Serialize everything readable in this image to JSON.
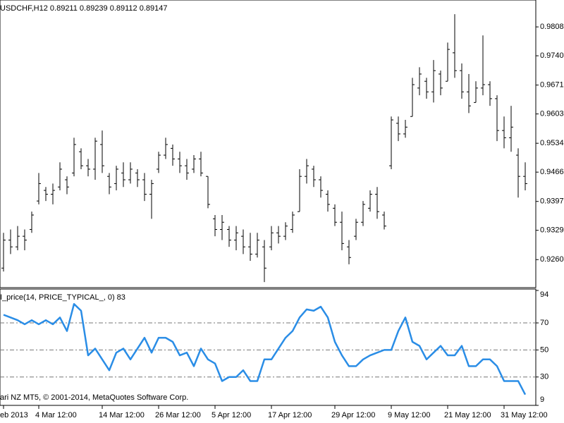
{
  "chart_data": [
    {
      "type": "ohlc",
      "title": "USDCHF,H12  0.89211 0.89239 0.89112 0.89147",
      "color": "#000000",
      "open": [
        0.924,
        0.9306,
        0.929,
        0.9315,
        0.9331,
        0.9398,
        0.9423,
        0.9414,
        0.9431,
        0.9448,
        0.9464,
        0.9514,
        0.9481,
        0.9473,
        0.9531,
        0.9456,
        0.9439,
        0.9464,
        0.9448,
        0.9464,
        0.9448,
        0.9414,
        0.9473,
        0.9506,
        0.9522,
        0.9497,
        0.9481,
        0.9473,
        0.9497,
        0.9456,
        0.9356,
        0.9331,
        0.9331,
        0.9306,
        0.9315,
        0.929,
        0.9273,
        0.929,
        0.929,
        0.9323,
        0.9315,
        0.9331,
        0.9373,
        0.9456,
        0.9473,
        0.9448,
        0.9414,
        0.9381,
        0.9348,
        0.929,
        0.9315,
        0.9348,
        0.9381,
        0.9414,
        0.9365,
        0.9481,
        0.9581,
        0.9556,
        0.9597,
        0.9664,
        0.968,
        0.9655,
        0.9697,
        0.968,
        0.9747,
        0.9705,
        0.9655,
        0.963,
        0.9664,
        0.9672,
        0.9639,
        0.9564,
        0.9547,
        0.9506,
        0.9456
      ],
      "high": [
        0.9323,
        0.9331,
        0.9339,
        0.9331,
        0.9373,
        0.9464,
        0.9431,
        0.9439,
        0.9489,
        0.9456,
        0.9547,
        0.9522,
        0.9497,
        0.9547,
        0.9564,
        0.9464,
        0.9481,
        0.9489,
        0.9489,
        0.9473,
        0.9464,
        0.9448,
        0.9514,
        0.9547,
        0.9531,
        0.9514,
        0.9497,
        0.9506,
        0.9514,
        0.9456,
        0.9365,
        0.9365,
        0.9339,
        0.9339,
        0.9331,
        0.9323,
        0.9323,
        0.9306,
        0.9339,
        0.9339,
        0.9348,
        0.9373,
        0.9473,
        0.9497,
        0.9481,
        0.9456,
        0.9423,
        0.939,
        0.9373,
        0.9306,
        0.9356,
        0.9398,
        0.9423,
        0.9431,
        0.9373,
        0.9597,
        0.9597,
        0.9589,
        0.9688,
        0.9713,
        0.9688,
        0.973,
        0.9705,
        0.9771,
        0.9838,
        0.9722,
        0.9697,
        0.968,
        0.9788,
        0.968,
        0.9647,
        0.9597,
        0.9622,
        0.9522,
        0.9489
      ],
      "low": [
        0.9232,
        0.9273,
        0.9282,
        0.9282,
        0.9323,
        0.939,
        0.9398,
        0.939,
        0.9423,
        0.9414,
        0.9456,
        0.9473,
        0.9456,
        0.9448,
        0.9464,
        0.9414,
        0.9423,
        0.9431,
        0.9439,
        0.9431,
        0.9398,
        0.9356,
        0.9464,
        0.9497,
        0.9481,
        0.9464,
        0.9448,
        0.9464,
        0.9456,
        0.9381,
        0.9315,
        0.9306,
        0.929,
        0.9282,
        0.9273,
        0.9257,
        0.9265,
        0.9207,
        0.9282,
        0.9298,
        0.9306,
        0.9323,
        0.9373,
        0.9439,
        0.9431,
        0.9406,
        0.9373,
        0.9339,
        0.9282,
        0.9249,
        0.9306,
        0.9339,
        0.9373,
        0.9356,
        0.9331,
        0.9473,
        0.9539,
        0.9547,
        0.9597,
        0.9647,
        0.9639,
        0.963,
        0.9647,
        0.968,
        0.9688,
        0.9639,
        0.9605,
        0.963,
        0.9647,
        0.9622,
        0.9539,
        0.9522,
        0.9514,
        0.9406,
        0.9423
      ],
      "close": [
        0.9306,
        0.929,
        0.9315,
        0.9306,
        0.9365,
        0.9439,
        0.9414,
        0.9423,
        0.9473,
        0.9431,
        0.9531,
        0.9481,
        0.9473,
        0.9539,
        0.9481,
        0.9431,
        0.9473,
        0.9448,
        0.9473,
        0.9448,
        0.9414,
        0.9439,
        0.9506,
        0.9531,
        0.9497,
        0.9481,
        0.9464,
        0.9497,
        0.9464,
        0.939,
        0.9331,
        0.9348,
        0.9306,
        0.9323,
        0.929,
        0.9273,
        0.9306,
        0.924,
        0.9323,
        0.9315,
        0.9339,
        0.9365,
        0.9456,
        0.9481,
        0.9448,
        0.9423,
        0.939,
        0.9348,
        0.9298,
        0.9265,
        0.9348,
        0.939,
        0.9414,
        0.9373,
        0.9339,
        0.9589,
        0.9556,
        0.9572,
        0.9672,
        0.9697,
        0.9655,
        0.9705,
        0.9664,
        0.9755,
        0.9705,
        0.9655,
        0.9622,
        0.9664,
        0.9672,
        0.9639,
        0.9564,
        0.9547,
        0.9572,
        0.9456,
        0.9439
      ],
      "ylim": [
        0.9194,
        0.9868
      ],
      "yticks": [
        0.9808,
        {
          "value": 0.974,
          "label": "0.9740"
        },
        0.9671,
        0.9603,
        0.9534,
        0.9466,
        0.9397,
        0.9329,
        {
          "value": 0.926,
          "label": "0.9260"
        }
      ]
    },
    {
      "type": "line",
      "title": "I_price(14, PRICE_TYPICAL_, 0) 83",
      "footer": "ari NZ MT5, © 2001-2014, MetaQuotes Software Corp.",
      "color": "#2a8de6",
      "categories": [
        "eb 2013",
        null,
        null,
        null,
        null,
        "4 Mar 12:00",
        null,
        null,
        null,
        null,
        null,
        null,
        null,
        null,
        "14 Mar 12:00",
        null,
        null,
        null,
        null,
        null,
        null,
        null,
        "26 Mar 12:00",
        null,
        null,
        null,
        null,
        null,
        null,
        null,
        "5 Apr 12:00",
        null,
        null,
        null,
        null,
        null,
        null,
        null,
        "17 Apr 12:00",
        null,
        null,
        null,
        null,
        null,
        null,
        null,
        null,
        "29 Apr 12:00",
        null,
        null,
        null,
        null,
        null,
        null,
        null,
        "9 May 12:00",
        null,
        null,
        null,
        null,
        null,
        null,
        null,
        "21 May 12:00",
        null,
        null,
        null,
        null,
        null,
        null,
        null,
        "31 May 12:00",
        null,
        null,
        null
      ],
      "values": [
        76,
        74,
        72,
        69,
        72,
        69,
        72,
        69,
        74,
        64,
        84,
        79,
        46,
        51,
        43,
        35,
        48,
        51,
        43,
        51,
        59,
        48,
        59,
        59,
        56,
        46,
        48,
        38,
        51,
        43,
        40,
        27,
        30,
        30,
        35,
        27,
        27,
        43,
        43,
        51,
        59,
        64,
        74,
        80,
        79,
        82,
        74,
        56,
        46,
        38,
        38,
        43,
        46,
        48,
        50,
        50,
        64,
        74,
        56,
        53,
        43,
        48,
        53,
        46,
        46,
        53,
        38,
        38,
        43,
        43,
        38,
        27,
        27,
        27,
        17
      ],
      "ylim": [
        9,
        94
      ],
      "yticks": [
        94,
        70,
        50,
        30,
        9
      ]
    }
  ]
}
